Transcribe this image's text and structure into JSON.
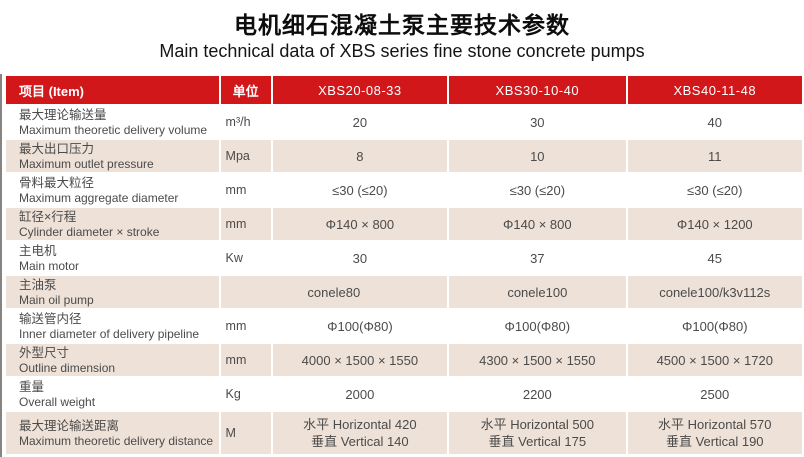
{
  "title": {
    "zh": "电机细石混凝土泵主要技术参数",
    "en": "Main technical data of XBS series fine stone concrete pumps"
  },
  "table": {
    "header": {
      "item": "项目  (Item)",
      "unit": "单位",
      "models": [
        "XBS20-08-33",
        "XBS30-10-40",
        "XBS40-11-48"
      ]
    },
    "rows": [
      {
        "zh": "最大理论输送量",
        "en": "Maximum theoretic delivery volume",
        "unit": "m³/h",
        "values": [
          "20",
          "30",
          "40"
        ]
      },
      {
        "zh": "最大出口压力",
        "en": "Maximum outlet pressure",
        "unit": "Mpa",
        "values": [
          "8",
          "10",
          "11"
        ]
      },
      {
        "zh": "骨料最大粒径",
        "en": "Maximum aggregate diameter",
        "unit": "mm",
        "values": [
          "≤30 (≤20)",
          "≤30 (≤20)",
          "≤30 (≤20)"
        ]
      },
      {
        "zh": "缸径×行程",
        "en": "Cylinder diameter × stroke",
        "unit": "mm",
        "values": [
          "Φ140 × 800",
          "Φ140 × 800",
          "Φ140 × 1200"
        ]
      },
      {
        "zh": "主电机",
        "en": "Main motor",
        "unit": "Kw",
        "values": [
          "30",
          "37",
          "45"
        ]
      },
      {
        "zh": "主油泵",
        "en": "Main oil pump",
        "unit": "",
        "merged_unit": true,
        "values": [
          "conele80",
          "conele100",
          "conele100/k3v112s"
        ]
      },
      {
        "zh": "输送管内径",
        "en": "Inner diameter of delivery pipeline",
        "unit": "mm",
        "values": [
          "Φ100(Φ80)",
          "Φ100(Φ80)",
          "Φ100(Φ80)"
        ]
      },
      {
        "zh": "外型尺寸",
        "en": "Outline dimension",
        "unit": "mm",
        "values": [
          "4000 × 1500 × 1550",
          "4300 × 1500 × 1550",
          "4500 × 1500 × 1720"
        ]
      },
      {
        "zh": "重量",
        "en": "Overall weight",
        "unit": "Kg",
        "values": [
          "2000",
          "2200",
          "2500"
        ]
      },
      {
        "zh": "最大理论输送距离",
        "en": "Maximum theoretic delivery distance",
        "unit": "M",
        "values": [
          [
            "水平 Horizontal 420",
            "垂直 Vertical 140"
          ],
          [
            "水平 Horizontal 500",
            "垂直 Vertical 175"
          ],
          [
            "水平 Horizontal 570",
            "垂直 Vertical 190"
          ]
        ]
      }
    ],
    "colors": {
      "header_bg": "#d2171b",
      "header_text": "#ffffff",
      "row_bg": "#ffffff",
      "row_alt_bg": "#eee1d7",
      "body_text": "#4b4b4b"
    }
  }
}
